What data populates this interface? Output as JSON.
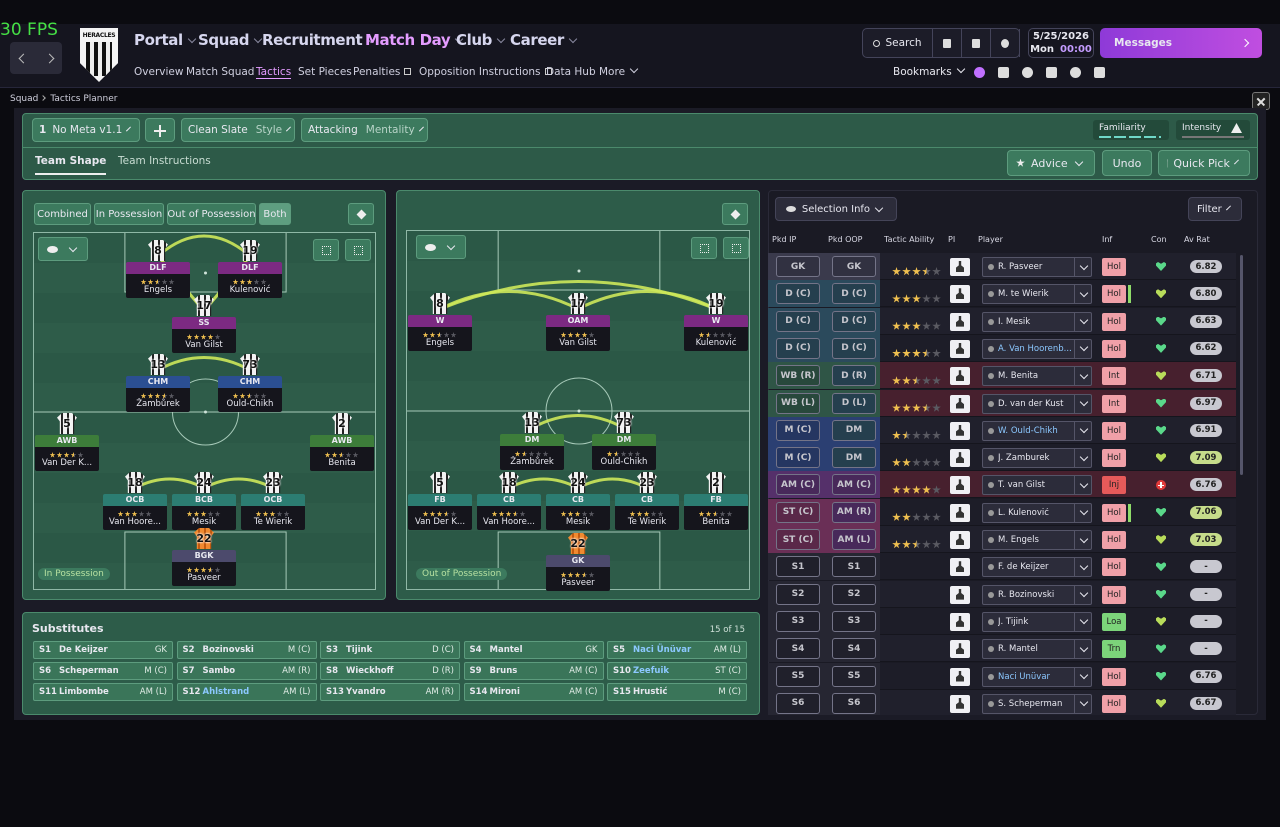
{
  "fps": "30 FPS",
  "header": {
    "crest": "HERACLES",
    "menus": [
      "Portal",
      "Squad",
      "Recruitment",
      "Match Day",
      "Club",
      "Career"
    ],
    "submenu": [
      "Overview",
      "Match Squad",
      "Tactics",
      "Set Pieces",
      "Penalties",
      "Opposition Instructions",
      "Data Hub",
      "More"
    ],
    "search": "Search",
    "date": "5/25/2026",
    "day": "Mon",
    "time": "00:00",
    "messages": "Messages",
    "bookmarks": "Bookmarks"
  },
  "breadcrumb": [
    "Squad",
    "Tactics Planner"
  ],
  "toolbar": {
    "tactic_slot": "1",
    "tactic": "No Meta v1.1",
    "style": "Clean Slate",
    "style_label": "Style",
    "mentality": "Attacking",
    "mentality_label": "Mentality",
    "familiarity": "Familiarity",
    "intensity": "Intensity"
  },
  "tabs": [
    "Team Shape",
    "Team Instructions"
  ],
  "actions": {
    "advice": "Advice",
    "undo": "Undo",
    "quick_pick": "Quick Pick"
  },
  "views": [
    "Combined",
    "In Possession",
    "Out of Possession",
    "Both"
  ],
  "pitches": [
    {
      "label": "In Possession",
      "players": [
        {
          "number": 8,
          "role": "DLF",
          "stars": 2.5,
          "name": "Engels"
        },
        {
          "number": 19,
          "role": "DLF",
          "stars": 3,
          "name": "Kulenović"
        },
        {
          "number": 17,
          "role": "SS",
          "stars": 4,
          "name": "Van Gilst"
        },
        {
          "number": 13,
          "role": "CHM",
          "stars": 3.5,
          "name": "Žambůrek"
        },
        {
          "number": 73,
          "role": "CHM",
          "stars": 2.5,
          "name": "Ould-Chikh"
        },
        {
          "number": 5,
          "role": "AWB",
          "stars": 3.5,
          "name": "Van Der K..."
        },
        {
          "number": 2,
          "role": "AWB",
          "stars": 2.5,
          "name": "Benita"
        },
        {
          "number": 18,
          "role": "OCB",
          "stars": 3,
          "name": "Van Hoore..."
        },
        {
          "number": 24,
          "role": "BCB",
          "stars": 3,
          "name": "Mesik"
        },
        {
          "number": 23,
          "role": "OCB",
          "stars": 3,
          "name": "Te Wierik"
        },
        {
          "number": 22,
          "role": "BGK",
          "stars": 3.5,
          "name": "Pasveer"
        }
      ]
    },
    {
      "label": "Out of Possession",
      "players": [
        {
          "number": 8,
          "role": "W",
          "stars": 2.5,
          "name": "Engels"
        },
        {
          "number": 17,
          "role": "OAM",
          "stars": 4,
          "name": "Van Gilst"
        },
        {
          "number": 19,
          "role": "W",
          "stars": 1.5,
          "name": "Kulenović"
        },
        {
          "number": 13,
          "role": "DM",
          "stars": 1.5,
          "name": "Žambůrek"
        },
        {
          "number": 73,
          "role": "DM",
          "stars": 1.5,
          "name": "Ould-Chikh"
        },
        {
          "number": 5,
          "role": "FB",
          "stars": 3.5,
          "name": "Van Der K..."
        },
        {
          "number": 18,
          "role": "CB",
          "stars": 3.5,
          "name": "Van Hoore..."
        },
        {
          "number": 24,
          "role": "CB",
          "stars": 3,
          "name": "Mesik"
        },
        {
          "number": 23,
          "role": "CB",
          "stars": 3,
          "name": "Te Wierik"
        },
        {
          "number": 2,
          "role": "FB",
          "stars": 2.5,
          "name": "Benita"
        },
        {
          "number": 22,
          "role": "GK",
          "stars": 3.5,
          "name": "Pasveer"
        }
      ]
    }
  ],
  "substitutes": {
    "title": "Substitutes",
    "count": "15 of 15",
    "players": [
      {
        "slot": "S1",
        "name": "De Keijzer",
        "pos": "GK"
      },
      {
        "slot": "S2",
        "name": "Bozinovski",
        "pos": "M (C)"
      },
      {
        "slot": "S3",
        "name": "Tijink",
        "pos": "D (C)"
      },
      {
        "slot": "S4",
        "name": "Mantel",
        "pos": "GK"
      },
      {
        "slot": "S5",
        "name": "Naci Ünüvar",
        "pos": "AM (L)"
      },
      {
        "slot": "S6",
        "name": "Scheperman",
        "pos": "M (C)"
      },
      {
        "slot": "S7",
        "name": "Sambo",
        "pos": "AM (R)"
      },
      {
        "slot": "S8",
        "name": "Wieckhoff",
        "pos": "D (R)"
      },
      {
        "slot": "S9",
        "name": "Bruns",
        "pos": "AM (C)"
      },
      {
        "slot": "S10",
        "name": "Zeefuik",
        "pos": "ST (C)"
      },
      {
        "slot": "S11",
        "name": "Limbombe",
        "pos": "AM (L)"
      },
      {
        "slot": "S12",
        "name": "Ahlstrand",
        "pos": "AM (L)"
      },
      {
        "slot": "S13",
        "name": "Yvandro",
        "pos": "AM (R)"
      },
      {
        "slot": "S14",
        "name": "Mironi",
        "pos": "AM (C)"
      },
      {
        "slot": "S15",
        "name": "Hrustić",
        "pos": "M (C)"
      }
    ]
  },
  "selection": {
    "dropdown": "Selection Info",
    "filter": "Filter",
    "columns": [
      "Pkd IP",
      "Pkd OOP",
      "Tactic Ability",
      "PI",
      "Player",
      "Inf",
      "Con",
      "Av Rat"
    ],
    "rows": [
      {
        "ip": "GK",
        "oop": "GK",
        "ability": 3.5,
        "player": "R. Pasveer",
        "inf": "Hol",
        "rating": "6.82"
      },
      {
        "ip": "D (C)",
        "oop": "D (C)",
        "ability": 3,
        "player": "M. te Wierik",
        "inf": "Hol",
        "rating": "6.80"
      },
      {
        "ip": "D (C)",
        "oop": "D (C)",
        "ability": 3,
        "player": "I. Mesik",
        "inf": "Hol",
        "rating": "6.63"
      },
      {
        "ip": "D (C)",
        "oop": "D (C)",
        "ability": 3.5,
        "player": "A. Van Hoorenb...",
        "inf": "Hol",
        "rating": "6.62"
      },
      {
        "ip": "WB (R)",
        "oop": "D (R)",
        "ability": 2.5,
        "player": "M. Benita",
        "inf": "Int",
        "rating": "6.71"
      },
      {
        "ip": "WB (L)",
        "oop": "D (L)",
        "ability": 3.5,
        "player": "D. van der Kust",
        "inf": "Int",
        "rating": "6.97"
      },
      {
        "ip": "M (C)",
        "oop": "DM",
        "ability": 1.5,
        "player": "W. Ould-Chikh",
        "inf": "Hol",
        "rating": "6.91"
      },
      {
        "ip": "M (C)",
        "oop": "DM",
        "ability": 2,
        "player": "J. Žamburek",
        "inf": "Hol",
        "rating": "7.09"
      },
      {
        "ip": "AM (C)",
        "oop": "AM (C)",
        "ability": 4,
        "player": "T. van Gilst",
        "inf": "Inj",
        "rating": "6.76"
      },
      {
        "ip": "ST (C)",
        "oop": "AM (R)",
        "ability": 2,
        "player": "L. Kulenović",
        "inf": "Hol",
        "rating": "7.06"
      },
      {
        "ip": "ST (C)",
        "oop": "AM (L)",
        "ability": 2.5,
        "player": "M. Engels",
        "inf": "Hol",
        "rating": "7.03"
      },
      {
        "ip": "S1",
        "oop": "S1",
        "player": "F. de Keijzer",
        "inf": "Hol",
        "rating": "-"
      },
      {
        "ip": "S2",
        "oop": "S2",
        "player": "R. Bozinovski",
        "inf": "Hol",
        "rating": "-"
      },
      {
        "ip": "S3",
        "oop": "S3",
        "player": "J. Tijink",
        "inf": "Loa",
        "rating": "-"
      },
      {
        "ip": "S4",
        "oop": "S4",
        "player": "R. Mantel",
        "inf": "Trn",
        "rating": "-"
      },
      {
        "ip": "S5",
        "oop": "S5",
        "player": "Naci Ünüvar",
        "inf": "Hol",
        "rating": "6.76"
      },
      {
        "ip": "S6",
        "oop": "S6",
        "player": "S. Scheperman",
        "inf": "Hol",
        "rating": "6.67"
      }
    ]
  }
}
